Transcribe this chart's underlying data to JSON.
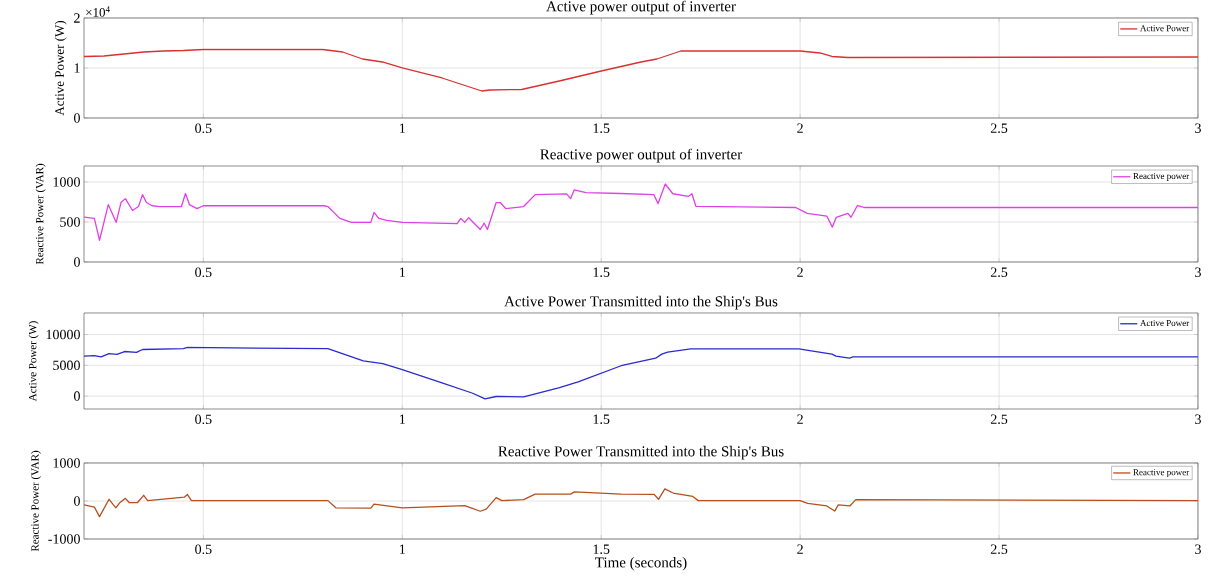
{
  "chart_data": [
    {
      "type": "line",
      "title": "Active power output of inverter",
      "ylabel": "Active Power (W)",
      "annotations": [
        "×10$^{4}$"
      ],
      "xlim": [
        0.2,
        3
      ],
      "xticks": [
        0.5,
        1,
        1.5,
        2,
        2.5,
        3
      ],
      "ylim": [
        0,
        2
      ],
      "yticks": [
        0,
        1,
        2
      ],
      "grid": true,
      "legend": "top right",
      "series": [
        {
          "name": "Active Power",
          "color": "#d93030",
          "x": [
            0.2,
            0.25,
            0.3,
            0.35,
            0.4,
            0.45,
            0.5,
            0.8,
            0.85,
            0.9,
            0.95,
            1.0,
            1.1,
            1.2,
            1.22,
            1.3,
            1.4,
            1.5,
            1.6,
            1.64,
            1.7,
            2.0,
            2.05,
            2.08,
            2.12,
            3.0
          ],
          "values": [
            1.23,
            1.24,
            1.28,
            1.32,
            1.34,
            1.35,
            1.37,
            1.37,
            1.32,
            1.18,
            1.12,
            1.0,
            0.8,
            0.54,
            0.56,
            0.57,
            0.75,
            0.94,
            1.12,
            1.18,
            1.34,
            1.34,
            1.3,
            1.23,
            1.21,
            1.22
          ]
        }
      ]
    },
    {
      "type": "line",
      "title": "Reactive power output of inverter",
      "ylabel": "Reactive Power (VAR)",
      "xlim": [
        0.2,
        3
      ],
      "xticks": [
        0.5,
        1,
        1.5,
        2,
        2.5,
        3
      ],
      "ylim": [
        0,
        1200
      ],
      "yticks": [
        0,
        500,
        1000
      ],
      "grid": true,
      "legend": "top right",
      "series": [
        {
          "name": "Reactive power",
          "color": "#e040e8",
          "x": [
            0.2,
            0.226,
            0.239,
            0.261,
            0.281,
            0.293,
            0.304,
            0.322,
            0.337,
            0.347,
            0.357,
            0.371,
            0.391,
            0.445,
            0.455,
            0.465,
            0.484,
            0.5,
            0.804,
            0.813,
            0.843,
            0.872,
            0.921,
            0.929,
            0.941,
            0.961,
            1.0,
            1.138,
            1.147,
            1.157,
            1.167,
            1.196,
            1.206,
            1.214,
            1.236,
            1.246,
            1.26,
            1.305,
            1.334,
            1.413,
            1.423,
            1.432,
            1.462,
            1.55,
            1.632,
            1.643,
            1.661,
            1.68,
            1.719,
            1.728,
            1.738,
            1.989,
            2.018,
            2.067,
            2.081,
            2.091,
            2.12,
            2.128,
            2.144,
            2.163,
            3.0
          ],
          "values": [
            560,
            545,
            272,
            718,
            495,
            743,
            792,
            644,
            693,
            842,
            743,
            703,
            693,
            693,
            856,
            718,
            668,
            703,
            703,
            693,
            545,
            495,
            495,
            619,
            545,
            520,
            495,
            480,
            545,
            495,
            554,
            406,
            485,
            406,
            743,
            743,
            668,
            693,
            842,
            851,
            792,
            901,
            866,
            856,
            843,
            730,
            975,
            853,
            819,
            853,
            696,
            681,
            608,
            574,
            436,
            559,
            608,
            559,
            706,
            681,
            681
          ]
        }
      ]
    },
    {
      "type": "line",
      "title": "Active Power Transmitted into the Ship's Bus",
      "ylabel": "Active Power (W)",
      "xlim": [
        0.2,
        3
      ],
      "xticks": [
        0.5,
        1,
        1.5,
        2,
        2.5,
        3
      ],
      "ylim": [
        -2100,
        13500
      ],
      "yticks": [
        0,
        5000,
        10000
      ],
      "grid": true,
      "legend": "top right",
      "series": [
        {
          "name": "Active Power",
          "color": "#2a2ad0",
          "x": [
            0.2,
            0.226,
            0.243,
            0.263,
            0.283,
            0.302,
            0.332,
            0.347,
            0.45,
            0.46,
            0.813,
            0.902,
            0.951,
            1.0,
            1.098,
            1.177,
            1.208,
            1.236,
            1.305,
            1.393,
            1.442,
            1.55,
            1.637,
            1.652,
            1.667,
            1.725,
            1.997,
            2.036,
            2.08,
            2.09,
            2.124,
            2.133,
            3.0
          ],
          "values": [
            6500,
            6580,
            6380,
            6900,
            6780,
            7240,
            7100,
            7570,
            7700,
            7900,
            7700,
            5720,
            5260,
            4280,
            2170,
            460,
            -460,
            -70,
            -130,
            1320,
            2300,
            4930,
            6160,
            6820,
            7150,
            7680,
            7680,
            7280,
            6820,
            6490,
            6160,
            6360,
            6360
          ]
        }
      ]
    },
    {
      "type": "line",
      "title": "Reactive Power Transmitted into the Ship's Bus",
      "xlabel": "Time (seconds)",
      "ylabel": "Reactive Power (VAR)",
      "xlim": [
        0.2,
        3
      ],
      "xticks": [
        0.5,
        1,
        1.5,
        2,
        2.5,
        3
      ],
      "ylim": [
        -1000,
        1000
      ],
      "yticks": [
        -1000,
        0,
        1000
      ],
      "grid": true,
      "legend": "top right",
      "series": [
        {
          "name": "Reactive power",
          "color": "#b5501e",
          "x": [
            0.2,
            0.226,
            0.239,
            0.263,
            0.28,
            0.29,
            0.304,
            0.314,
            0.334,
            0.35,
            0.36,
            0.452,
            0.46,
            0.47,
            0.813,
            0.833,
            0.921,
            0.929,
            1.0,
            1.157,
            1.196,
            1.211,
            1.236,
            1.25,
            1.305,
            1.334,
            1.423,
            1.433,
            1.55,
            1.633,
            1.644,
            1.66,
            1.681,
            1.73,
            1.744,
            2.0,
            2.019,
            2.067,
            2.087,
            2.096,
            2.125,
            2.14,
            3.0
          ],
          "values": [
            -100,
            -160,
            -410,
            45,
            -180,
            -45,
            70,
            -45,
            -45,
            150,
            10,
            100,
            170,
            10,
            10,
            -180,
            -190,
            -80,
            -180,
            -120,
            -270,
            -215,
            90,
            10,
            35,
            180,
            180,
            240,
            180,
            175,
            45,
            320,
            210,
            120,
            10,
            10,
            -65,
            -130,
            -265,
            -100,
            -130,
            35,
            10
          ]
        }
      ]
    }
  ]
}
